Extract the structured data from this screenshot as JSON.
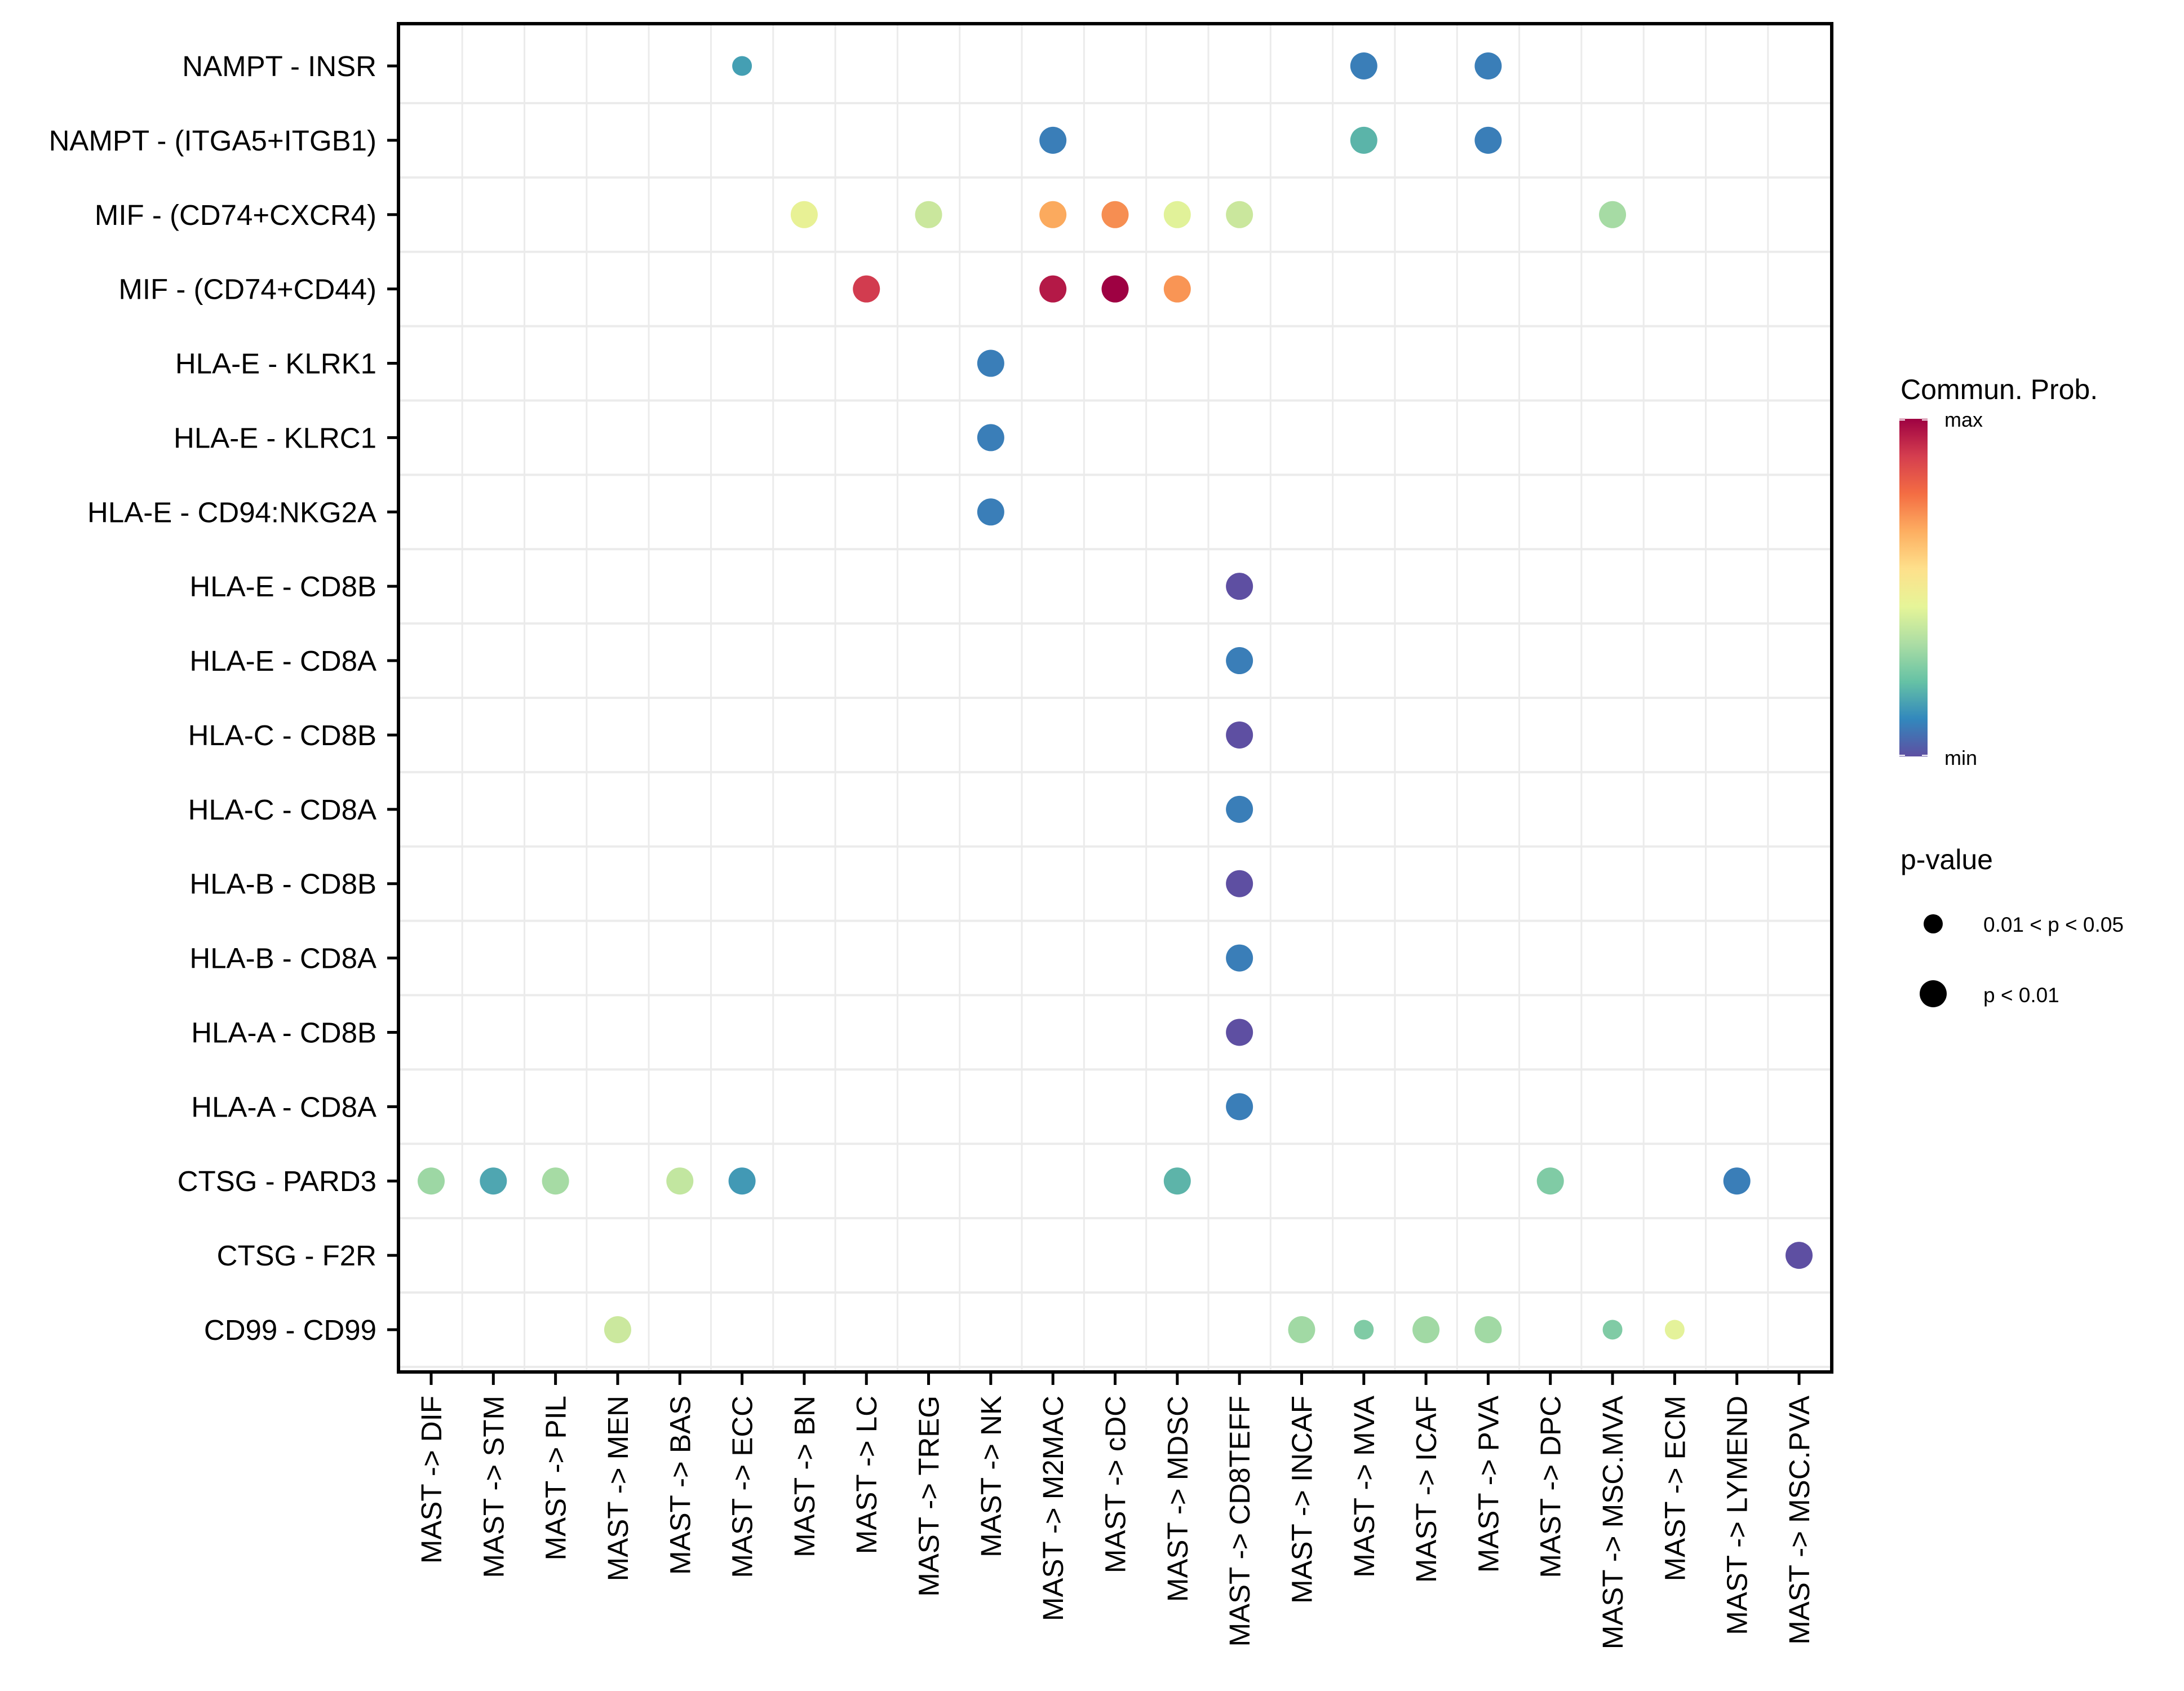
{
  "chart_data": {
    "type": "scatter",
    "subtype": "dot-plot",
    "title": "",
    "xlabel": "",
    "ylabel": "",
    "grid": true,
    "categories_x": [
      "MAST -> DIF",
      "MAST -> STM",
      "MAST -> PIL",
      "MAST -> MEN",
      "MAST -> BAS",
      "MAST -> ECC",
      "MAST -> BN",
      "MAST -> LC",
      "MAST -> TREG",
      "MAST -> NK",
      "MAST -> M2MAC",
      "MAST -> cDC",
      "MAST -> MDSC",
      "MAST -> CD8TEFF",
      "MAST -> INCAF",
      "MAST -> MVA",
      "MAST -> ICAF",
      "MAST -> PVA",
      "MAST -> DPC",
      "MAST -> MSC.MVA",
      "MAST -> ECM",
      "MAST -> LYMEND",
      "MAST -> MSC.PVA"
    ],
    "categories_y": [
      "NAMPT - INSR",
      "NAMPT - (ITGA5+ITGB1)",
      "MIF - (CD74+CXCR4)",
      "MIF - (CD74+CD44)",
      "HLA-E - KLRK1",
      "HLA-E - KLRC1",
      "HLA-E - CD94:NKG2A",
      "HLA-E - CD8B",
      "HLA-E - CD8A",
      "HLA-C - CD8B",
      "HLA-C - CD8A",
      "HLA-B - CD8B",
      "HLA-B - CD8A",
      "HLA-A - CD8B",
      "HLA-A - CD8A",
      "CTSG - PARD3",
      "CTSG - F2R",
      "CD99 - CD99"
    ],
    "color_scale": {
      "title": "Commun. Prob.",
      "min_label": "min",
      "max_label": "max",
      "palette": [
        "#5e4fa2",
        "#3288bd",
        "#66c2a5",
        "#abdda4",
        "#e6f598",
        "#fee08b",
        "#fdae61",
        "#f46d43",
        "#d53e4f",
        "#9e0142"
      ]
    },
    "size_legend": {
      "title": "p-value",
      "entries": [
        {
          "label": "0.01 < p < 0.05",
          "size": "small"
        },
        {
          "label": "p < 0.01",
          "size": "large"
        }
      ]
    },
    "points": [
      {
        "x": "MAST -> ECC",
        "y": "NAMPT - INSR",
        "prob": 0.18,
        "color": "#449fb3",
        "pval": "0.01 < p < 0.05"
      },
      {
        "x": "MAST -> MVA",
        "y": "NAMPT - INSR",
        "prob": 0.12,
        "color": "#3a7eb8",
        "pval": "p < 0.01"
      },
      {
        "x": "MAST -> PVA",
        "y": "NAMPT - INSR",
        "prob": 0.12,
        "color": "#3a7eb8",
        "pval": "p < 0.01"
      },
      {
        "x": "MAST -> M2MAC",
        "y": "NAMPT - (ITGA5+ITGB1)",
        "prob": 0.12,
        "color": "#3a7eb8",
        "pval": "p < 0.01"
      },
      {
        "x": "MAST -> MVA",
        "y": "NAMPT - (ITGA5+ITGB1)",
        "prob": 0.24,
        "color": "#5bb4a9",
        "pval": "p < 0.01"
      },
      {
        "x": "MAST -> PVA",
        "y": "NAMPT - (ITGA5+ITGB1)",
        "prob": 0.12,
        "color": "#3a7eb8",
        "pval": "p < 0.01"
      },
      {
        "x": "MAST -> BN",
        "y": "MIF - (CD74+CXCR4)",
        "prob": 0.48,
        "color": "#e8f195",
        "pval": "p < 0.01"
      },
      {
        "x": "MAST -> TREG",
        "y": "MIF - (CD74+CXCR4)",
        "prob": 0.4,
        "color": "#cae79d",
        "pval": "p < 0.01"
      },
      {
        "x": "MAST -> M2MAC",
        "y": "MIF - (CD74+CXCR4)",
        "prob": 0.68,
        "color": "#fbaa5e",
        "pval": "p < 0.01"
      },
      {
        "x": "MAST -> cDC",
        "y": "MIF - (CD74+CXCR4)",
        "prob": 0.76,
        "color": "#f68e52",
        "pval": "p < 0.01"
      },
      {
        "x": "MAST -> MDSC",
        "y": "MIF - (CD74+CXCR4)",
        "prob": 0.46,
        "color": "#e1f299",
        "pval": "p < 0.01"
      },
      {
        "x": "MAST -> CD8TEFF",
        "y": "MIF - (CD74+CXCR4)",
        "prob": 0.4,
        "color": "#cae79d",
        "pval": "p < 0.01"
      },
      {
        "x": "MAST -> MSC.MVA",
        "y": "MIF - (CD74+CXCR4)",
        "prob": 0.35,
        "color": "#a6dba4",
        "pval": "p < 0.01"
      },
      {
        "x": "MAST -> LC",
        "y": "MIF - (CD74+CD44)",
        "prob": 0.88,
        "color": "#d23c4f",
        "pval": "p < 0.01"
      },
      {
        "x": "MAST -> M2MAC",
        "y": "MIF - (CD74+CD44)",
        "prob": 0.95,
        "color": "#b41947",
        "pval": "p < 0.01"
      },
      {
        "x": "MAST -> cDC",
        "y": "MIF - (CD74+CD44)",
        "prob": 1.0,
        "color": "#9e0142",
        "pval": "p < 0.01"
      },
      {
        "x": "MAST -> MDSC",
        "y": "MIF - (CD74+CD44)",
        "prob": 0.74,
        "color": "#f99555",
        "pval": "p < 0.01"
      },
      {
        "x": "MAST -> NK",
        "y": "HLA-E - KLRK1",
        "prob": 0.12,
        "color": "#3a7eb8",
        "pval": "p < 0.01"
      },
      {
        "x": "MAST -> NK",
        "y": "HLA-E - KLRC1",
        "prob": 0.12,
        "color": "#3a7eb8",
        "pval": "p < 0.01"
      },
      {
        "x": "MAST -> NK",
        "y": "HLA-E - CD94:NKG2A",
        "prob": 0.12,
        "color": "#3a7eb8",
        "pval": "p < 0.01"
      },
      {
        "x": "MAST -> CD8TEFF",
        "y": "HLA-E - CD8B",
        "prob": 0.02,
        "color": "#5e4fa2",
        "pval": "p < 0.01"
      },
      {
        "x": "MAST -> CD8TEFF",
        "y": "HLA-E - CD8A",
        "prob": 0.12,
        "color": "#3a7eb8",
        "pval": "p < 0.01"
      },
      {
        "x": "MAST -> CD8TEFF",
        "y": "HLA-C - CD8B",
        "prob": 0.02,
        "color": "#5e4fa2",
        "pval": "p < 0.01"
      },
      {
        "x": "MAST -> CD8TEFF",
        "y": "HLA-C - CD8A",
        "prob": 0.12,
        "color": "#3a7eb8",
        "pval": "p < 0.01"
      },
      {
        "x": "MAST -> CD8TEFF",
        "y": "HLA-B - CD8B",
        "prob": 0.02,
        "color": "#5e4fa2",
        "pval": "p < 0.01"
      },
      {
        "x": "MAST -> CD8TEFF",
        "y": "HLA-B - CD8A",
        "prob": 0.12,
        "color": "#3a7eb8",
        "pval": "p < 0.01"
      },
      {
        "x": "MAST -> CD8TEFF",
        "y": "HLA-A - CD8B",
        "prob": 0.02,
        "color": "#5e4fa2",
        "pval": "p < 0.01"
      },
      {
        "x": "MAST -> CD8TEFF",
        "y": "HLA-A - CD8A",
        "prob": 0.12,
        "color": "#3a7eb8",
        "pval": "p < 0.01"
      },
      {
        "x": "MAST -> DIF",
        "y": "CTSG - PARD3",
        "prob": 0.33,
        "color": "#9dd7a4",
        "pval": "p < 0.01"
      },
      {
        "x": "MAST -> STM",
        "y": "CTSG - PARD3",
        "prob": 0.19,
        "color": "#4fa6b1",
        "pval": "p < 0.01"
      },
      {
        "x": "MAST -> PIL",
        "y": "CTSG - PARD3",
        "prob": 0.35,
        "color": "#a6dba4",
        "pval": "p < 0.01"
      },
      {
        "x": "MAST -> BAS",
        "y": "CTSG - PARD3",
        "prob": 0.4,
        "color": "#c2e6a0",
        "pval": "p < 0.01"
      },
      {
        "x": "MAST -> ECC",
        "y": "CTSG - PARD3",
        "prob": 0.17,
        "color": "#4299b5",
        "pval": "p < 0.01"
      },
      {
        "x": "MAST -> MDSC",
        "y": "CTSG - PARD3",
        "prob": 0.24,
        "color": "#5db4a9",
        "pval": "p < 0.01"
      },
      {
        "x": "MAST -> DPC",
        "y": "CTSG - PARD3",
        "prob": 0.28,
        "color": "#80cba5",
        "pval": "p < 0.01"
      },
      {
        "x": "MAST -> LYMEND",
        "y": "CTSG - PARD3",
        "prob": 0.12,
        "color": "#3a7eb8",
        "pval": "p < 0.01"
      },
      {
        "x": "MAST -> MSC.PVA",
        "y": "CTSG - F2R",
        "prob": 0.02,
        "color": "#5e4fa2",
        "pval": "p < 0.01"
      },
      {
        "x": "MAST -> MEN",
        "y": "CD99 - CD99",
        "prob": 0.41,
        "color": "#cbe89e",
        "pval": "p < 0.01"
      },
      {
        "x": "MAST -> INCAF",
        "y": "CD99 - CD99",
        "prob": 0.34,
        "color": "#a1d9a4",
        "pval": "p < 0.01"
      },
      {
        "x": "MAST -> MVA",
        "y": "CD99 - CD99",
        "prob": 0.28,
        "color": "#80cba5",
        "pval": "0.01 < p < 0.05"
      },
      {
        "x": "MAST -> ICAF",
        "y": "CD99 - CD99",
        "prob": 0.34,
        "color": "#a1d9a4",
        "pval": "p < 0.01"
      },
      {
        "x": "MAST -> PVA",
        "y": "CD99 - CD99",
        "prob": 0.34,
        "color": "#a1d9a4",
        "pval": "p < 0.01"
      },
      {
        "x": "MAST -> MSC.MVA",
        "y": "CD99 - CD99",
        "prob": 0.28,
        "color": "#80cba5",
        "pval": "0.01 < p < 0.05"
      },
      {
        "x": "MAST -> ECM",
        "y": "CD99 - CD99",
        "prob": 0.47,
        "color": "#e4f29a",
        "pval": "0.01 < p < 0.05"
      }
    ]
  }
}
